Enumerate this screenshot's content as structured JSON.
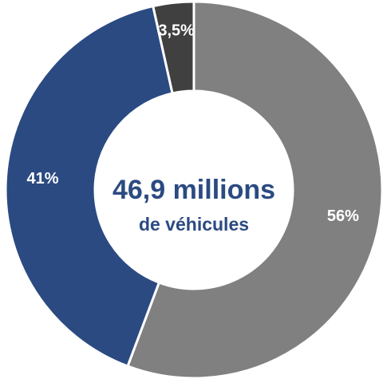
{
  "chart_data": {
    "type": "donut",
    "categories": [
      null,
      null,
      null
    ],
    "values": [
      56,
      41,
      3.5
    ],
    "value_labels": [
      "56%",
      "41%",
      "3,5%"
    ],
    "colors": [
      "#808080",
      "#2b4a82",
      "#404040"
    ],
    "annotations": [
      "46,9 millions",
      "de véhicules"
    ]
  }
}
